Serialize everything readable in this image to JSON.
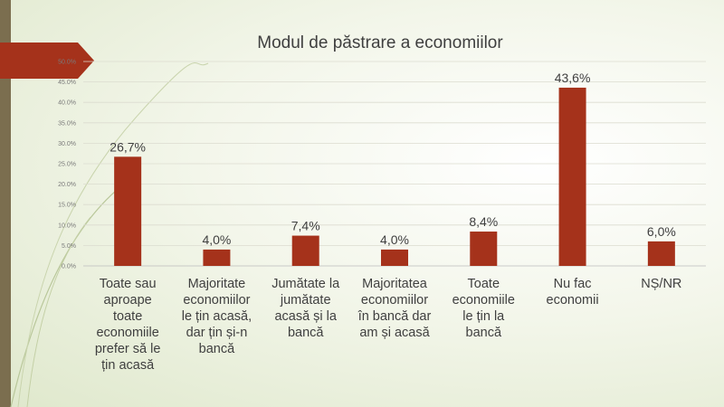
{
  "chart_data": {
    "type": "bar",
    "title": "Modul de păstrare a economiilor",
    "categories": [
      "Toate sau aproape toate economiile prefer să le țin acasă",
      "Majoritate economiilor le țin acasă, dar țin și-n bancă",
      "Jumătate la jumătate acasă și la bancă",
      "Majoritatea economiilor în bancă dar am și acasă",
      "Toate economiile le țin la bancă",
      "Nu fac economii",
      "NȘ/NR"
    ],
    "category_lines": [
      [
        "Toate sau",
        "aproape",
        "toate",
        "economiile",
        "prefer să le",
        "țin acasă"
      ],
      [
        "Majoritate",
        "economiilor",
        "le țin acasă,",
        "dar țin și-n",
        "bancă"
      ],
      [
        "Jumătate la",
        "jumătate",
        "acasă și la",
        "bancă"
      ],
      [
        "Majoritatea",
        "economiilor",
        "în bancă dar",
        "am și acasă"
      ],
      [
        "Toate",
        "economiile",
        "le țin la",
        "bancă"
      ],
      [
        "Nu fac",
        "economii"
      ],
      [
        "NȘ/NR"
      ]
    ],
    "values": [
      26.7,
      4.0,
      7.4,
      4.0,
      8.4,
      43.6,
      6.0
    ],
    "data_labels": [
      "26,7%",
      "4,0%",
      "7,4%",
      "4,0%",
      "8,4%",
      "43,6%",
      "6,0%"
    ],
    "y_ticks": [
      "0.0%",
      "5.0%",
      "10.0%",
      "15.0%",
      "20.0%",
      "25.0%",
      "30.0%",
      "35.0%",
      "40.0%",
      "45.0%",
      "50.0%"
    ],
    "ylim": [
      0,
      50
    ],
    "grid": true,
    "bar_color": "#a5321b"
  },
  "theme": {
    "accent": "#a5321b",
    "side_bar": "#7b6e4f"
  }
}
